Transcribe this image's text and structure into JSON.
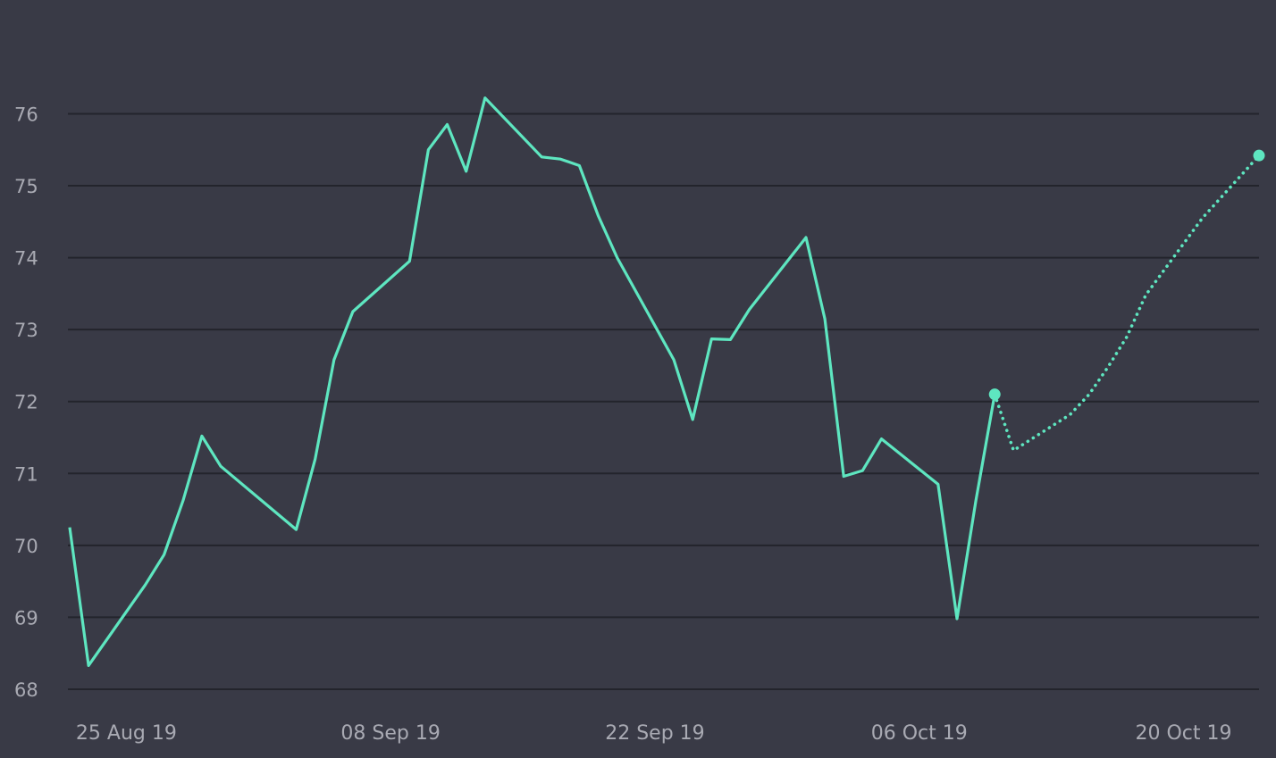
{
  "chart_data": {
    "type": "line",
    "grid": true,
    "ylim": [
      68,
      76.8
    ],
    "xlim": [
      "2019-08-22",
      "2019-10-24"
    ],
    "y_ticks": [
      "68",
      "69",
      "70",
      "71",
      "72",
      "73",
      "74",
      "75",
      "76"
    ],
    "x_ticks": [
      {
        "label": "25 Aug 19",
        "date": "2019-08-25"
      },
      {
        "label": "08 Sep 19",
        "date": "2019-09-08"
      },
      {
        "label": "22 Sep 19",
        "date": "2019-09-22"
      },
      {
        "label": "06 Oct 19",
        "date": "2019-10-06"
      },
      {
        "label": "20 Oct 19",
        "date": "2019-10-20"
      }
    ],
    "series": [
      {
        "style": "solid",
        "color": "#5ee6c0",
        "points": [
          {
            "x": "2019-08-22",
            "y": 70.25
          },
          {
            "x": "2019-08-23",
            "y": 68.33
          },
          {
            "x": "2019-08-26",
            "y": 69.45
          },
          {
            "x": "2019-08-27",
            "y": 69.87
          },
          {
            "x": "2019-08-28",
            "y": 70.62
          },
          {
            "x": "2019-08-29",
            "y": 71.52
          },
          {
            "x": "2019-08-30",
            "y": 71.1
          },
          {
            "x": "2019-09-03",
            "y": 70.22
          },
          {
            "x": "2019-09-04",
            "y": 71.2
          },
          {
            "x": "2019-09-05",
            "y": 72.58
          },
          {
            "x": "2019-09-06",
            "y": 73.25
          },
          {
            "x": "2019-09-09",
            "y": 73.95
          },
          {
            "x": "2019-09-10",
            "y": 75.5
          },
          {
            "x": "2019-09-11",
            "y": 75.85
          },
          {
            "x": "2019-09-12",
            "y": 75.2
          },
          {
            "x": "2019-09-13",
            "y": 76.22
          },
          {
            "x": "2019-09-16",
            "y": 75.4
          },
          {
            "x": "2019-09-17",
            "y": 75.37
          },
          {
            "x": "2019-09-18",
            "y": 75.28
          },
          {
            "x": "2019-09-19",
            "y": 74.58
          },
          {
            "x": "2019-09-20",
            "y": 74.0
          },
          {
            "x": "2019-09-23",
            "y": 72.58
          },
          {
            "x": "2019-09-24",
            "y": 71.75
          },
          {
            "x": "2019-09-25",
            "y": 72.87
          },
          {
            "x": "2019-09-26",
            "y": 72.86
          },
          {
            "x": "2019-09-27",
            "y": 73.28
          },
          {
            "x": "2019-09-30",
            "y": 74.28
          },
          {
            "x": "2019-10-01",
            "y": 73.15
          },
          {
            "x": "2019-10-02",
            "y": 70.96
          },
          {
            "x": "2019-10-03",
            "y": 71.04
          },
          {
            "x": "2019-10-04",
            "y": 71.48
          },
          {
            "x": "2019-10-07",
            "y": 70.85
          },
          {
            "x": "2019-10-08",
            "y": 68.98
          },
          {
            "x": "2019-10-09",
            "y": 70.62
          },
          {
            "x": "2019-10-10",
            "y": 72.1
          }
        ]
      },
      {
        "style": "dotted",
        "color": "#5ee6c0",
        "points": [
          {
            "x": "2019-10-10",
            "y": 72.1
          },
          {
            "x": "2019-10-11",
            "y": 71.32
          },
          {
            "x": "2019-10-14",
            "y": 71.82
          },
          {
            "x": "2019-10-15",
            "y": 72.1
          },
          {
            "x": "2019-10-16",
            "y": 72.48
          },
          {
            "x": "2019-10-17",
            "y": 72.9
          },
          {
            "x": "2019-10-18",
            "y": 73.48
          },
          {
            "x": "2019-10-21",
            "y": 74.55
          },
          {
            "x": "2019-10-24",
            "y": 75.42
          }
        ]
      }
    ]
  }
}
